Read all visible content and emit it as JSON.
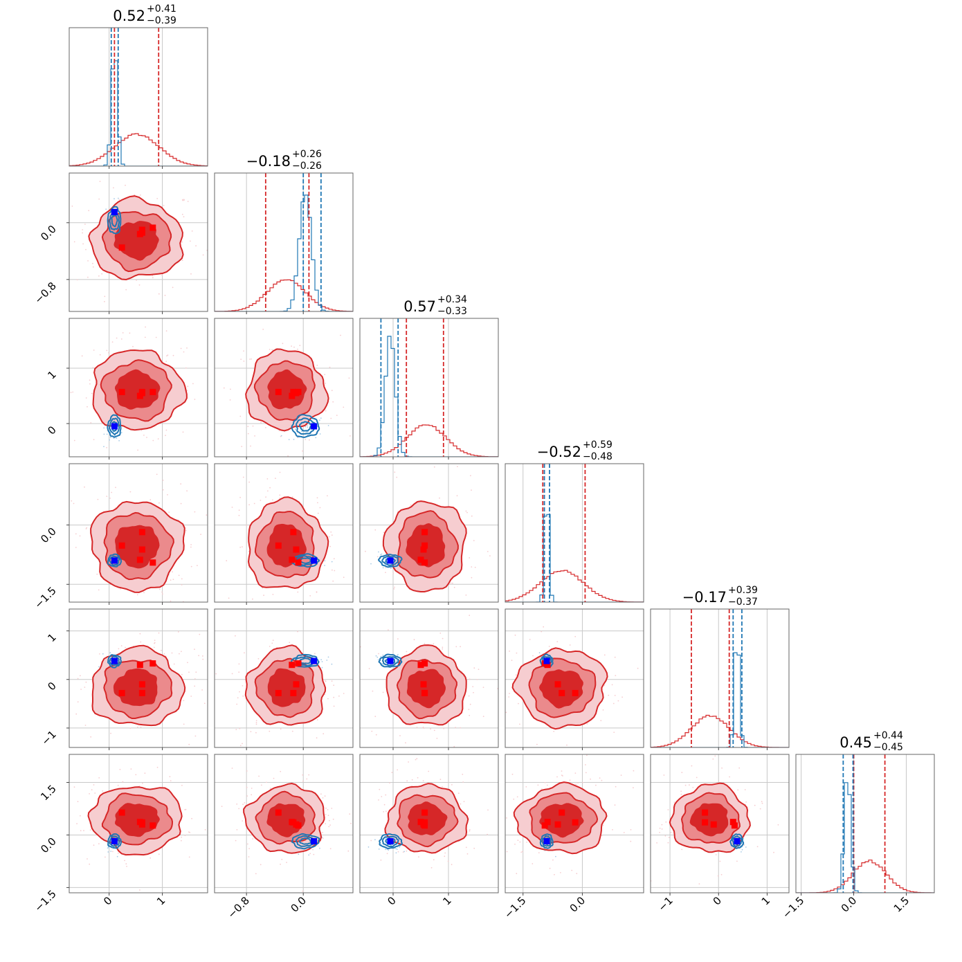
{
  "chart_data": {
    "type": "corner",
    "grid": true,
    "n_params": 6,
    "colors": {
      "red_line": "#d62728",
      "red_dark": "#d62728",
      "red_mid": "#eb8a8c",
      "red_light": "#f6cdd0",
      "blue_line": "#1f77b4",
      "blue_marker": "#0000ff",
      "red_marker": "#ff0000"
    },
    "titles": [
      {
        "median": "0.52",
        "plus": "+0.41",
        "minus": "−0.39"
      },
      {
        "median": "−0.18",
        "plus": "+0.26",
        "minus": "−0.26"
      },
      {
        "median": "0.57",
        "plus": "+0.34",
        "minus": "−0.33"
      },
      {
        "median": "−0.52",
        "plus": "+0.59",
        "minus": "−0.48"
      },
      {
        "median": "−0.17",
        "plus": "+0.39",
        "minus": "−0.37"
      },
      {
        "median": "0.45",
        "plus": "+0.44",
        "minus": "−0.45"
      }
    ],
    "params": [
      {
        "range": [
          -0.75,
          1.85
        ],
        "ticks": [
          0,
          1
        ],
        "tick_labels": [
          "0",
          "1"
        ]
      },
      {
        "range": [
          -1.25,
          0.7
        ],
        "ticks": [
          -0.8,
          0.0
        ],
        "tick_labels": [
          "−0.8",
          "0.0"
        ]
      },
      {
        "range": [
          -0.6,
          1.9
        ],
        "ticks": [
          0,
          1
        ],
        "tick_labels": [
          "0",
          "1"
        ]
      },
      {
        "range": [
          -1.95,
          1.55
        ],
        "ticks": [
          -1.5,
          0.0
        ],
        "tick_labels": [
          "−1.5",
          "0.0"
        ]
      },
      {
        "range": [
          -1.4,
          1.45
        ],
        "ticks": [
          -1,
          0,
          1
        ],
        "tick_labels": [
          "−1",
          "0",
          "1"
        ]
      },
      {
        "range": [
          -1.65,
          2.3
        ],
        "ticks": [
          -1.5,
          0.0,
          1.5
        ],
        "tick_labels": [
          "−1.5",
          "0.0",
          "1.5"
        ]
      }
    ],
    "red_posterior": {
      "mean": [
        0.52,
        -0.24,
        0.6,
        -0.52,
        -0.17,
        0.45
      ],
      "sd": [
        0.42,
        0.27,
        0.35,
        0.55,
        0.39,
        0.47
      ],
      "quantiles": [
        [
          0.1,
          0.93
        ],
        [
          -0.53,
          0.08
        ],
        [
          0.24,
          0.91
        ],
        [
          -1.0,
          0.07
        ],
        [
          -0.56,
          0.22
        ],
        [
          0.0,
          0.89
        ]
      ]
    },
    "blue_posterior": {
      "mean": [
        0.1,
        0.03,
        -0.05,
        -0.9,
        0.38,
        -0.18
      ],
      "sd": [
        0.055,
        0.085,
        0.09,
        0.055,
        0.05,
        0.09
      ],
      "quantiles": [
        [
          0.04,
          0.17
        ],
        [
          0.0,
          0.25
        ],
        [
          -0.22,
          0.09
        ],
        [
          -0.96,
          -0.83
        ],
        [
          0.3,
          0.48
        ],
        [
          -0.3,
          -0.02
        ]
      ]
    },
    "red_markers": [
      [
        0.82,
        -0.07,
        0.57,
        -0.95,
        0.33,
        0.27
      ],
      [
        0.62,
        -0.14,
        0.57,
        -0.18,
        -0.28,
        0.36
      ],
      [
        0.24,
        -0.35,
        0.57,
        -0.52,
        -0.28,
        0.64
      ],
      [
        0.58,
        -0.16,
        0.5,
        -0.88,
        0.3,
        0.37
      ],
      [
        0.62,
        -0.1,
        0.55,
        -0.62,
        -0.1,
        0.3
      ]
    ],
    "blue_marker": [
      0.1,
      0.15,
      -0.05,
      -0.9,
      0.38,
      -0.18
    ]
  }
}
